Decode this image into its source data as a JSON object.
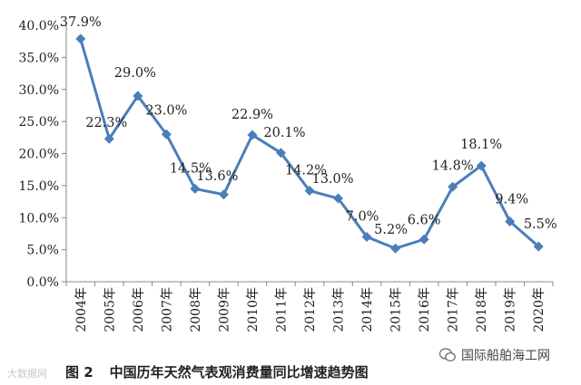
{
  "chart_data": {
    "type": "line",
    "title": "中国历年天然气表观消费量同比增速趋势图",
    "figure_number": "图 2",
    "categories": [
      "2004年",
      "2005年",
      "2006年",
      "2007年",
      "2008年",
      "2009年",
      "2010年",
      "2011年",
      "2012年",
      "2013年",
      "2014年",
      "2015年",
      "2016年",
      "2017年",
      "2018年",
      "2019年",
      "2020年"
    ],
    "values": [
      37.9,
      22.3,
      29.0,
      23.0,
      14.5,
      13.6,
      22.9,
      20.1,
      14.2,
      13.0,
      7.0,
      5.2,
      6.6,
      14.8,
      18.1,
      9.4,
      5.5
    ],
    "data_labels": [
      "37.9%",
      "22.3%",
      "29.0%",
      "23.0%",
      "14.5%",
      "13.6%",
      "22.9%",
      "20.1%",
      "14.2%",
      "13.0%",
      "7.0%",
      "5.2%",
      "6.6%",
      "14.8%",
      "18.1%",
      "9.4%",
      "5.5%"
    ],
    "y_ticks": [
      "0.0%",
      "5.0%",
      "10.0%",
      "15.0%",
      "20.0%",
      "25.0%",
      "30.0%",
      "35.0%",
      "40.0%"
    ],
    "ylim": [
      0,
      40
    ],
    "xlabel": "",
    "ylabel": "",
    "grid": false,
    "legend": "none",
    "series_color": "#4a7ebb"
  },
  "watermarks": {
    "left": "大数据网",
    "right": "国际船舶海工网"
  }
}
